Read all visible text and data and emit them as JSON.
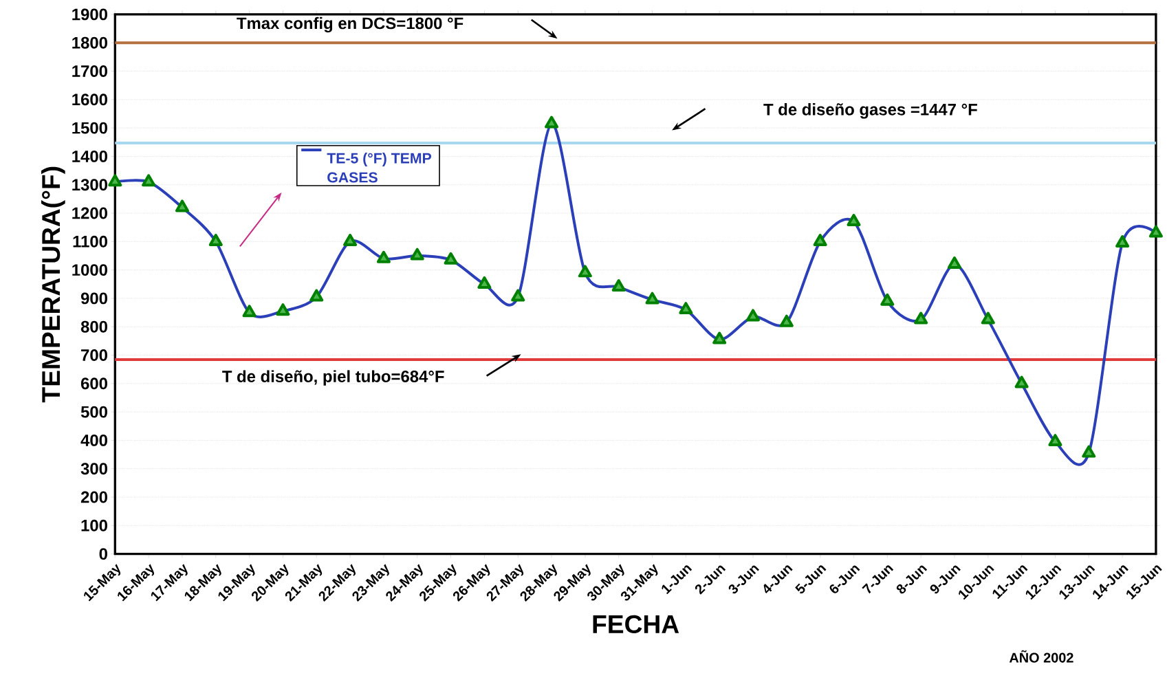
{
  "chart_data": {
    "type": "line",
    "xlabel": "FECHA",
    "ylabel": "TEMPERATURA(°F)",
    "categories": [
      "15-May",
      "16-May",
      "17-May",
      "18-May",
      "19-May",
      "20-May",
      "21-May",
      "22-May",
      "23-May",
      "24-May",
      "25-May",
      "26-May",
      "27-May",
      "28-May",
      "29-May",
      "30-May",
      "31-May",
      "1-Jun",
      "2-Jun",
      "3-Jun",
      "4-Jun",
      "5-Jun",
      "6-Jun",
      "7-Jun",
      "8-Jun",
      "9-Jun",
      "10-Jun",
      "11-Jun",
      "12-Jun",
      "13-Jun",
      "14-Jun",
      "15-Jun"
    ],
    "series": [
      {
        "name": "TE-5 (°F) TEMP GASES",
        "color": "#2b3fb8",
        "values": [
          1310,
          1310,
          1220,
          1100,
          850,
          855,
          905,
          1100,
          1040,
          1050,
          1035,
          950,
          905,
          1515,
          990,
          940,
          895,
          860,
          755,
          835,
          815,
          1100,
          1170,
          890,
          825,
          1020,
          825,
          600,
          395,
          355,
          1095,
          1130
        ]
      }
    ],
    "ylim": [
      0,
      1900
    ],
    "yticks": [
      0,
      100,
      200,
      300,
      400,
      500,
      600,
      700,
      800,
      900,
      1000,
      1100,
      1200,
      1300,
      1400,
      1500,
      1600,
      1700,
      1800,
      1900
    ],
    "grid": "y",
    "marker": "triangle",
    "line_style": "solid",
    "ref_lines": [
      {
        "axis": "y",
        "value": 1800,
        "label": "Tmax config en DCS=1800 °F",
        "color": "#b5703f"
      },
      {
        "axis": "y",
        "value": 1447,
        "label": "T de diseño gases =1447 °F",
        "color": "#a8d8f0"
      },
      {
        "axis": "y",
        "value": 684,
        "label": "T de diseño, piel tubo=684°F",
        "color": "#e03a3a"
      }
    ],
    "annotations": [
      "AÑO 2002"
    ]
  }
}
